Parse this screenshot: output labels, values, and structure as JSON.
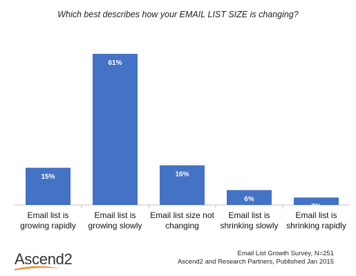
{
  "chart_data": {
    "type": "bar",
    "title": "Which best describes how your EMAIL LIST SIZE is changing?",
    "categories": [
      [
        "Email list is",
        "growing rapidly"
      ],
      [
        "Email list is",
        "growing slowly"
      ],
      [
        "Email list size not",
        "changing"
      ],
      [
        "Email list is",
        "shrinking slowly"
      ],
      [
        "Email list is",
        "shrinking rapidly"
      ]
    ],
    "values": [
      15,
      61,
      16,
      6,
      3
    ],
    "value_labels": [
      "15%",
      "61%",
      "16%",
      "6%",
      "3%"
    ],
    "ylim": [
      0,
      61
    ],
    "bar_color": "#4472c4",
    "grid": false,
    "legend": false
  },
  "source": {
    "line1": "Email List Growth Survey, N=251",
    "line2": "Ascend2 and Research Partners, Published Jan 2015"
  },
  "logo": {
    "text": "Ascend",
    "superscript": "2"
  },
  "colors": {
    "bar": "#4472c4",
    "axis": "#bfbfbf",
    "swoosh": "#f28c28"
  }
}
